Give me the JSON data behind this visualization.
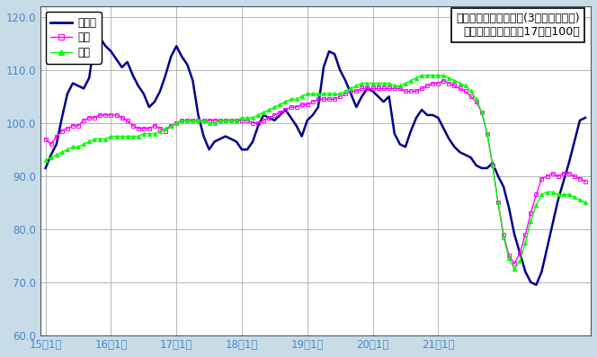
{
  "title_line1": "鉱工業生産指数の推移(3ヶ月移動平均)",
  "title_line2": "（季節調整済、平成17年＝100）",
  "legend_labels": [
    "鳥取県",
    "中国",
    "全国"
  ],
  "x_tick_labels": [
    "15年1月",
    "16年1月",
    "17年1月",
    "18年1月",
    "19年1月",
    "20年1月",
    "21年1月"
  ],
  "ylim": [
    60.0,
    122.0
  ],
  "yticks": [
    60.0,
    70.0,
    80.0,
    90.0,
    100.0,
    110.0,
    120.0
  ],
  "background_color": "#c8dce8",
  "plot_bg_color": "#ffffff",
  "tottori_color": "#00008B",
  "chugoku_color": "#FF00FF",
  "zenkoku_color": "#00FF00",
  "axis_label_color": "#4a86c8",
  "tottori": [
    91.5,
    94.0,
    96.0,
    101.0,
    105.5,
    107.5,
    107.0,
    106.5,
    108.5,
    115.5,
    116.0,
    114.5,
    113.5,
    112.0,
    110.5,
    111.5,
    109.0,
    107.0,
    105.5,
    103.0,
    104.0,
    106.0,
    109.0,
    112.5,
    114.5,
    112.5,
    111.0,
    108.0,
    101.5,
    97.5,
    95.0,
    96.5,
    97.0,
    97.5,
    97.0,
    96.5,
    95.0,
    95.0,
    96.5,
    99.5,
    101.5,
    101.0,
    100.5,
    101.5,
    102.5,
    101.0,
    99.5,
    97.5,
    100.5,
    101.5,
    103.0,
    110.5,
    113.5,
    113.0,
    110.0,
    108.0,
    105.5,
    103.0,
    105.0,
    106.5,
    106.0,
    105.0,
    104.0,
    105.0,
    98.0,
    96.0,
    95.5,
    98.5,
    101.0,
    102.5,
    101.5,
    101.5,
    101.0,
    99.0,
    97.0,
    95.5,
    94.5,
    94.0,
    93.5,
    92.0,
    91.5,
    91.5,
    92.5,
    90.0,
    88.0,
    84.0,
    79.0,
    75.5,
    72.0,
    70.0,
    69.5,
    72.0,
    76.5,
    81.0,
    85.5,
    89.0,
    92.5,
    96.5,
    100.5,
    101.0
  ],
  "chugoku": [
    97.0,
    96.0,
    97.5,
    98.5,
    99.0,
    99.5,
    99.5,
    100.5,
    101.0,
    101.0,
    101.5,
    101.5,
    101.5,
    101.5,
    101.0,
    100.5,
    99.5,
    99.0,
    99.0,
    99.0,
    99.5,
    99.0,
    98.5,
    99.5,
    100.0,
    100.5,
    100.5,
    100.5,
    100.5,
    100.5,
    100.5,
    100.5,
    100.5,
    100.5,
    100.5,
    100.5,
    100.5,
    100.5,
    100.0,
    100.0,
    100.5,
    101.0,
    101.5,
    102.0,
    102.5,
    103.0,
    103.0,
    103.5,
    103.5,
    104.0,
    104.5,
    104.5,
    104.5,
    104.5,
    105.0,
    105.5,
    106.0,
    106.0,
    106.5,
    106.5,
    106.5,
    106.5,
    106.5,
    106.5,
    106.5,
    106.5,
    106.0,
    106.0,
    106.0,
    106.5,
    107.0,
    107.5,
    107.5,
    108.0,
    107.5,
    107.0,
    106.5,
    106.0,
    105.0,
    104.0,
    102.0,
    98.0,
    92.0,
    85.0,
    79.0,
    75.0,
    73.5,
    75.5,
    79.0,
    83.0,
    86.5,
    89.5,
    90.0,
    90.5,
    90.0,
    90.5,
    90.5,
    90.0,
    89.5,
    89.0
  ],
  "zenkoku": [
    93.0,
    93.5,
    94.0,
    94.5,
    95.0,
    95.5,
    95.5,
    96.0,
    96.5,
    97.0,
    97.0,
    97.0,
    97.5,
    97.5,
    97.5,
    97.5,
    97.5,
    97.5,
    98.0,
    98.0,
    98.0,
    98.5,
    99.0,
    99.5,
    100.0,
    100.5,
    100.5,
    100.5,
    100.5,
    100.5,
    100.0,
    100.0,
    100.5,
    100.5,
    100.5,
    100.5,
    101.0,
    101.0,
    101.0,
    101.5,
    102.0,
    102.5,
    103.0,
    103.5,
    104.0,
    104.5,
    104.5,
    105.0,
    105.5,
    105.5,
    105.5,
    105.5,
    105.5,
    105.5,
    105.5,
    106.0,
    106.5,
    107.0,
    107.5,
    107.5,
    107.5,
    107.5,
    107.5,
    107.5,
    107.0,
    107.0,
    107.5,
    108.0,
    108.5,
    109.0,
    109.0,
    109.0,
    109.0,
    109.0,
    108.5,
    108.0,
    107.5,
    107.0,
    106.0,
    104.5,
    102.0,
    98.0,
    92.0,
    85.0,
    78.5,
    74.5,
    72.5,
    74.0,
    77.5,
    81.5,
    84.5,
    86.5,
    87.0,
    87.0,
    86.5,
    86.5,
    86.5,
    86.0,
    85.5,
    85.0
  ]
}
